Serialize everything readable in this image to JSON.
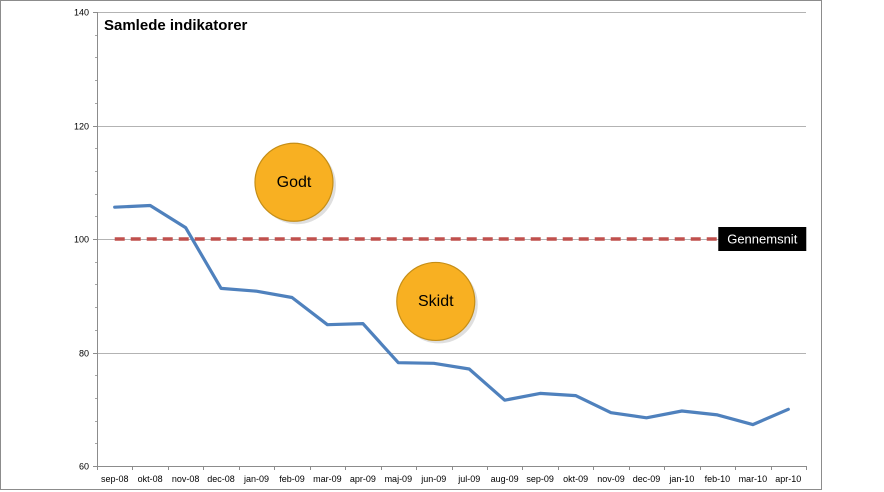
{
  "chart_data": {
    "type": "line",
    "title": "Samlede indikatorer",
    "categories": [
      "sep-08",
      "okt-08",
      "nov-08",
      "dec-08",
      "jan-09",
      "feb-09",
      "mar-09",
      "apr-09",
      "maj-09",
      "jun-09",
      "jul-09",
      "aug-09",
      "sep-09",
      "okt-09",
      "nov-09",
      "dec-09",
      "jan-10",
      "feb-10",
      "mar-10",
      "apr-10"
    ],
    "series": [
      {
        "values": [
          105.6,
          105.9,
          102.0,
          91.3,
          90.8,
          89.7,
          84.9,
          85.1,
          78.2,
          78.1,
          77.1,
          71.6,
          72.8,
          72.4,
          69.4,
          68.5,
          69.7,
          69.0,
          67.3,
          70.0
        ],
        "color": "#4f81bd"
      }
    ],
    "reference_line": {
      "label": "Gennemsnit",
      "value": 100,
      "color": "#c0504d"
    },
    "annotations": [
      {
        "text": "Godt",
        "x_category": "feb-09",
        "y": 110,
        "fill": "#f8b022"
      },
      {
        "text": "Skidt",
        "x_category": "jun-09",
        "y": 89,
        "fill": "#f8b022"
      }
    ],
    "ylim": [
      60,
      140
    ],
    "yticks": [
      60,
      80,
      100,
      120,
      140
    ],
    "grid": true,
    "xlabel": "",
    "ylabel": ""
  }
}
